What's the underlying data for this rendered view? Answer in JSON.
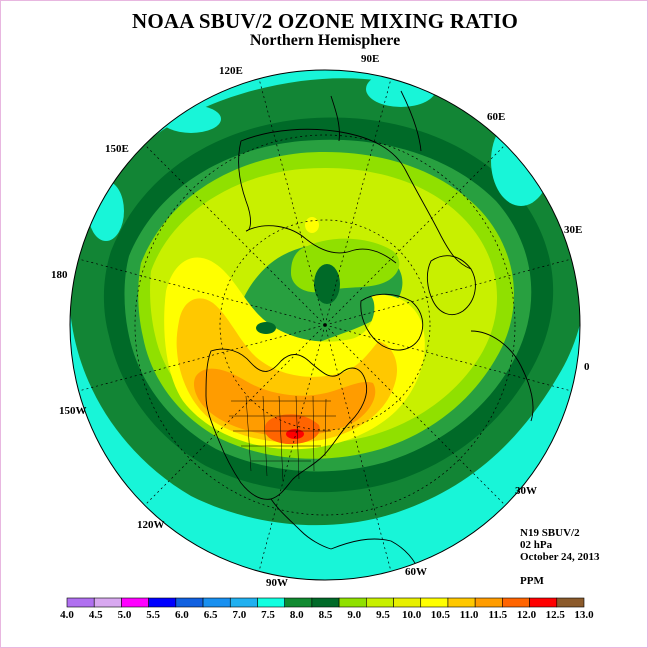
{
  "title": "NOAA SBUV/2 OZONE MIXING RATIO",
  "subtitle": "Northern Hemisphere",
  "longitude_labels": {
    "e90": "90E",
    "e120": "120E",
    "e150": "150E",
    "e60": "60E",
    "e30": "30E",
    "e0": "0",
    "w180": "180",
    "w150": "150W",
    "w120": "120W",
    "w90": "90W",
    "w60": "60W",
    "w30": "30W"
  },
  "info": {
    "satellite": "N19 SBUV/2",
    "level": "02 hPa",
    "date": "October 24, 2013",
    "units": "PPM"
  },
  "colorbar": {
    "labels": [
      "4.0",
      "4.5",
      "5.0",
      "5.5",
      "6.0",
      "6.5",
      "7.0",
      "7.5",
      "8.0",
      "8.5",
      "9.0",
      "9.5",
      "10.0",
      "10.5",
      "11.0",
      "11.5",
      "12.0",
      "12.5",
      "13.0"
    ],
    "colors": [
      "#b070f0",
      "#d8a8f0",
      "#ff00ff",
      "#0000ff",
      "#1060e0",
      "#1890f0",
      "#20b0f0",
      "#10ffe0",
      "#108a30",
      "#006a28",
      "#90e000",
      "#c8f000",
      "#e8f000",
      "#ffff00",
      "#ffc800",
      "#ff9c00",
      "#ff6400",
      "#ff0000",
      "#8b5a2b"
    ]
  },
  "map_colors": {
    "c7_5": "#18f5d8",
    "c8_0": "#128535",
    "c8_5": "#006a28",
    "c9_0": "#28a040",
    "c9_5": "#90e000",
    "c10_0": "#c8f000",
    "c10_5": "#ffff00",
    "c11_0": "#ffc800",
    "c11_5": "#ff9c00",
    "c12_0": "#ff6400",
    "c12_5": "#ff0000"
  }
}
